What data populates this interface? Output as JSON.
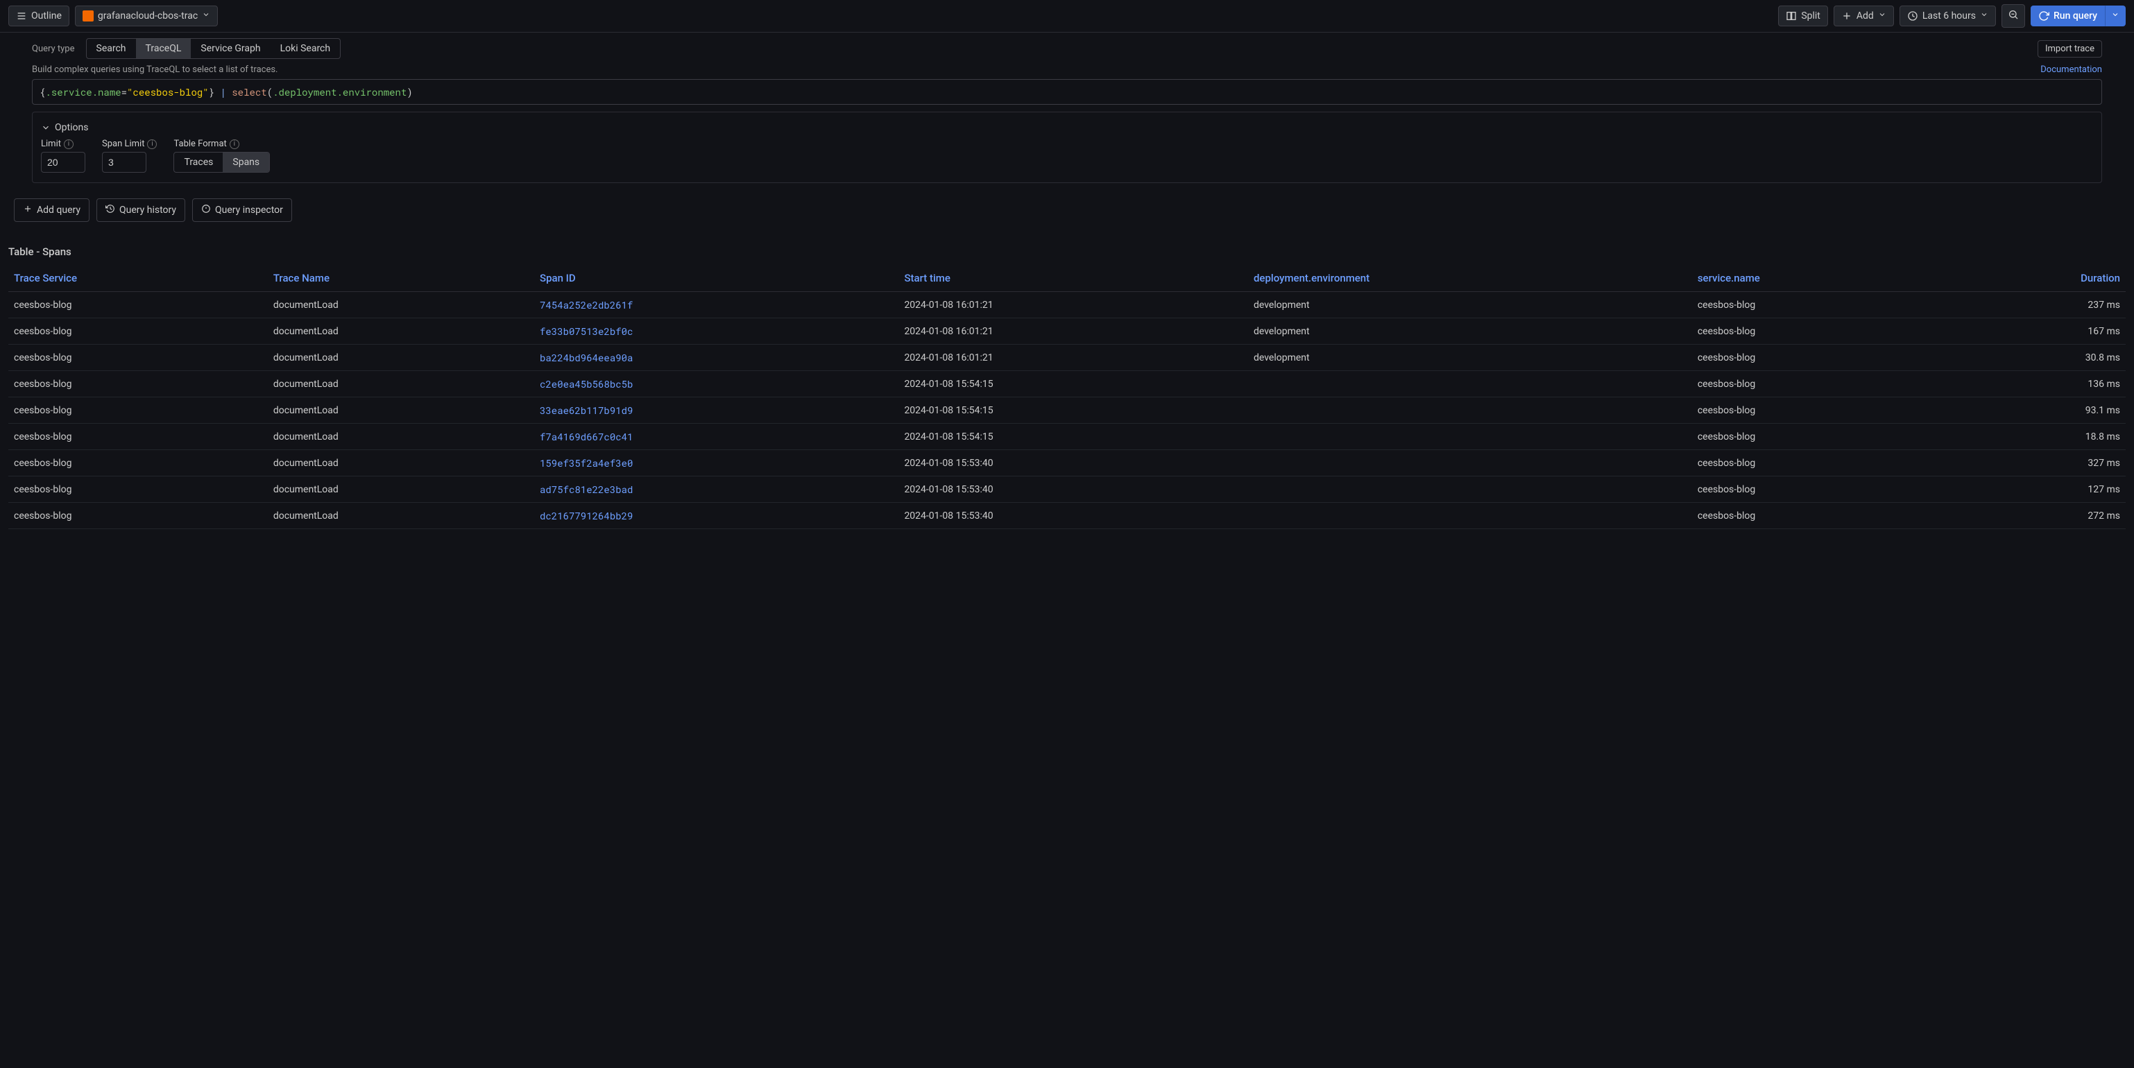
{
  "toolbar": {
    "outline_label": "Outline",
    "datasource": "grafanacloud-cbos-trac",
    "split_label": "Split",
    "add_label": "Add",
    "timerange_label": "Last 6 hours",
    "run_label": "Run query"
  },
  "query": {
    "type_label": "Query type",
    "tabs": [
      "Search",
      "TraceQL",
      "Service Graph",
      "Loki Search"
    ],
    "active_tab_index": 1,
    "import_label": "Import trace",
    "helper_text": "Build complex queries using TraceQL to select a list of traces.",
    "doc_label": "Documentation",
    "code": {
      "open_brace": "{",
      "attr1": ".service.name",
      "eq": "=",
      "str": "\"ceesbos-blog\"",
      "close_brace": "}",
      "pipe": " | ",
      "func": "select",
      "paren_open": "(",
      "attr2": ".deployment.environment",
      "paren_close": ")"
    }
  },
  "options": {
    "toggle_label": "Options",
    "limit_label": "Limit",
    "limit_value": "20",
    "span_limit_label": "Span Limit",
    "span_limit_value": "3",
    "table_format_label": "Table Format",
    "segments": [
      "Traces",
      "Spans"
    ],
    "active_segment_index": 1
  },
  "actions": {
    "add_query": "Add query",
    "query_history": "Query history",
    "query_inspector": "Query inspector"
  },
  "results": {
    "title": "Table - Spans",
    "columns": [
      "Trace Service",
      "Trace Name",
      "Span ID",
      "Start time",
      "deployment.environment",
      "service.name",
      "Duration"
    ],
    "column_align": [
      "left",
      "left",
      "left",
      "left",
      "left",
      "left",
      "right"
    ],
    "rows": [
      {
        "trace_service": "ceesbos-blog",
        "trace_name": "documentLoad",
        "span_id": "7454a252e2db261f",
        "start_time": "2024-01-08 16:01:21",
        "deployment_env": "development",
        "service_name": "ceesbos-blog",
        "duration": "237 ms"
      },
      {
        "trace_service": "ceesbos-blog",
        "trace_name": "documentLoad",
        "span_id": "fe33b07513e2bf0c",
        "start_time": "2024-01-08 16:01:21",
        "deployment_env": "development",
        "service_name": "ceesbos-blog",
        "duration": "167 ms"
      },
      {
        "trace_service": "ceesbos-blog",
        "trace_name": "documentLoad",
        "span_id": "ba224bd964eea90a",
        "start_time": "2024-01-08 16:01:21",
        "deployment_env": "development",
        "service_name": "ceesbos-blog",
        "duration": "30.8 ms"
      },
      {
        "trace_service": "ceesbos-blog",
        "trace_name": "documentLoad",
        "span_id": "c2e0ea45b568bc5b",
        "start_time": "2024-01-08 15:54:15",
        "deployment_env": "",
        "service_name": "ceesbos-blog",
        "duration": "136 ms"
      },
      {
        "trace_service": "ceesbos-blog",
        "trace_name": "documentLoad",
        "span_id": "33eae62b117b91d9",
        "start_time": "2024-01-08 15:54:15",
        "deployment_env": "",
        "service_name": "ceesbos-blog",
        "duration": "93.1 ms"
      },
      {
        "trace_service": "ceesbos-blog",
        "trace_name": "documentLoad",
        "span_id": "f7a4169d667c0c41",
        "start_time": "2024-01-08 15:54:15",
        "deployment_env": "",
        "service_name": "ceesbos-blog",
        "duration": "18.8 ms"
      },
      {
        "trace_service": "ceesbos-blog",
        "trace_name": "documentLoad",
        "span_id": "159ef35f2a4ef3e0",
        "start_time": "2024-01-08 15:53:40",
        "deployment_env": "",
        "service_name": "ceesbos-blog",
        "duration": "327 ms"
      },
      {
        "trace_service": "ceesbos-blog",
        "trace_name": "documentLoad",
        "span_id": "ad75fc81e22e3bad",
        "start_time": "2024-01-08 15:53:40",
        "deployment_env": "",
        "service_name": "ceesbos-blog",
        "duration": "127 ms"
      },
      {
        "trace_service": "ceesbos-blog",
        "trace_name": "documentLoad",
        "span_id": "dc2167791264bb29",
        "start_time": "2024-01-08 15:53:40",
        "deployment_env": "",
        "service_name": "ceesbos-blog",
        "duration": "272 ms"
      }
    ]
  },
  "colors": {
    "background": "#111217",
    "text": "#cccccc",
    "muted": "#9e9e9e",
    "border": "#3c3c44",
    "link": "#6e9fff",
    "primary": "#3d71d9",
    "active_bg": "#34363d",
    "row_border": "#22252b",
    "code_attr": "#73bf69",
    "code_str": "#f2cc0c",
    "code_func": "#ce9178"
  }
}
